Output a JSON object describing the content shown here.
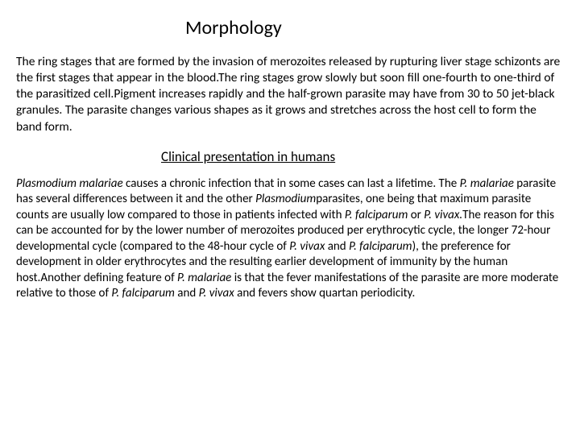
{
  "title": "Morphology",
  "para1": "The ring stages that are formed by the invasion of merozoites released by rupturing liver stage schizonts  are the first stages that appear in the blood.The ring stages grow slowly but soon fill one-fourth to one-third of the parasitized cell.Pigment increases rapidly and the half-grown parasite may have from 30 to 50 jet-black granules. The parasite changes various shapes as it grows and stretches across the host cell to form the band form.",
  "subtitle": "Clinical presentation in humans",
  "p2_s1_i1": "Plasmodium malariae",
  "p2_s1_t1": " causes a chronic infection that in some cases can last a lifetime. The ",
  "p2_s1_i2": "P. malariae",
  "p2_s1_t2": " parasite has several differences between it and the other ",
  "p2_s1_i3": "Plasmodium",
  "p2_s1_t3": "parasites, one being that maximum parasite counts are usually low compared to those in patients infected with ",
  "p2_s1_i4": "P. falciparum",
  "p2_s1_t4": " or ",
  "p2_s1_i5": "P. vivax.",
  "p2_s1_t5": "The reason for this can be accounted for by the lower number of merozoites produced per erythrocytic cycle, the longer 72-hour developmental cycle (compared to the 48-hour cycle of ",
  "p2_s1_i6": "P. vivax",
  "p2_s1_t6": " and ",
  "p2_s1_i7": "P. falciparum",
  "p2_s1_t7": "), the preference for development in older erythrocytes and the resulting earlier development of immunity by the human host.Another defining feature of ",
  "p2_s1_i8": "P. malariae",
  "p2_s1_t8": " is that the fever manifestations of the parasite are more moderate relative to those of ",
  "p2_s1_i9": "P. falciparum",
  "p2_s1_t9": " and ",
  "p2_s1_i10": "P. vivax",
  "p2_s1_t10": " and fevers show quartan periodicity.",
  "colors": {
    "background": "#ffffff",
    "text": "#000000"
  },
  "typography": {
    "title_fontsize": 24,
    "subtitle_fontsize": 17,
    "body_fontsize": 15.5,
    "body2_fontsize": 15,
    "font_family": "Calibri"
  }
}
